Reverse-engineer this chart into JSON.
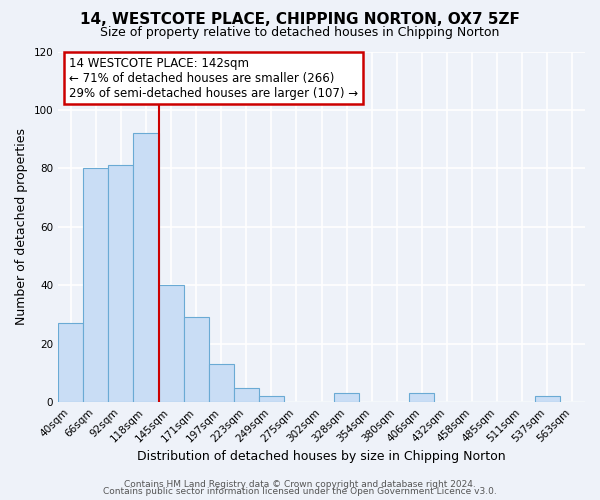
{
  "title": "14, WESTCOTE PLACE, CHIPPING NORTON, OX7 5ZF",
  "subtitle": "Size of property relative to detached houses in Chipping Norton",
  "xlabel": "Distribution of detached houses by size in Chipping Norton",
  "ylabel": "Number of detached properties",
  "bar_labels": [
    "40sqm",
    "66sqm",
    "92sqm",
    "118sqm",
    "145sqm",
    "171sqm",
    "197sqm",
    "223sqm",
    "249sqm",
    "275sqm",
    "302sqm",
    "328sqm",
    "354sqm",
    "380sqm",
    "406sqm",
    "432sqm",
    "458sqm",
    "485sqm",
    "511sqm",
    "537sqm",
    "563sqm"
  ],
  "bar_values": [
    27,
    80,
    81,
    92,
    40,
    29,
    13,
    5,
    2,
    0,
    0,
    3,
    0,
    0,
    3,
    0,
    0,
    0,
    0,
    2,
    0
  ],
  "bar_color": "#c9ddf5",
  "bar_edgecolor": "#6aaad4",
  "annotation_line_label": "14 WESTCOTE PLACE: 142sqm",
  "annotation_line1": "← 71% of detached houses are smaller (266)",
  "annotation_line2": "29% of semi-detached houses are larger (107) →",
  "annotation_box_color": "#ffffff",
  "annotation_box_edgecolor": "#cc0000",
  "vline_color": "#cc0000",
  "vline_x_index": 4,
  "ylim": [
    0,
    120
  ],
  "yticks": [
    0,
    20,
    40,
    60,
    80,
    100,
    120
  ],
  "footer1": "Contains HM Land Registry data © Crown copyright and database right 2024.",
  "footer2": "Contains public sector information licensed under the Open Government Licence v3.0.",
  "bg_color": "#eef2f9",
  "plot_bg_color": "#eef2f9",
  "grid_color": "#ffffff",
  "title_fontsize": 11,
  "subtitle_fontsize": 9,
  "axis_label_fontsize": 9,
  "tick_fontsize": 7.5,
  "annotation_fontsize": 8.5,
  "footer_fontsize": 6.5
}
